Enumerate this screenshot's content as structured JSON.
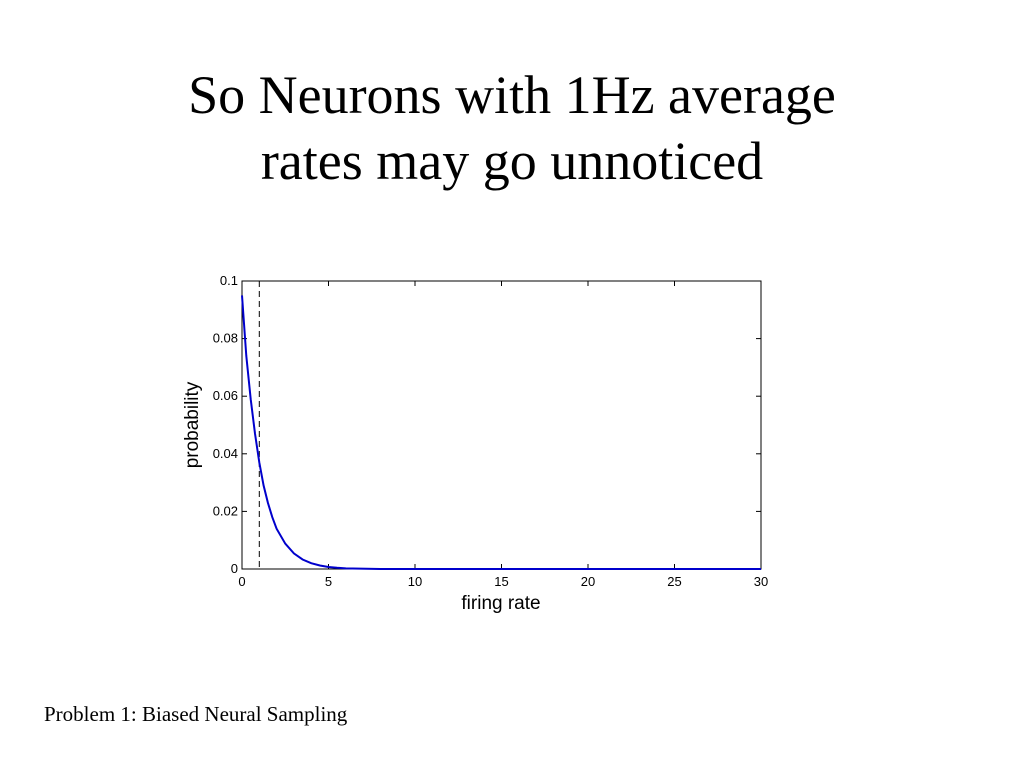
{
  "slide": {
    "title_line1": "So Neurons with 1Hz average",
    "title_line2": "rates may go unnoticed",
    "footer": "Problem 1: Biased Neural Sampling"
  },
  "chart_data": {
    "type": "line",
    "xlabel": "firing rate",
    "ylabel": "probability",
    "xlim": [
      0,
      30
    ],
    "ylim": [
      0,
      0.1
    ],
    "xticks": [
      "0",
      "5",
      "10",
      "15",
      "20",
      "25",
      "30"
    ],
    "yticks": [
      "0",
      "0.02",
      "0.04",
      "0.06",
      "0.08",
      "0.1"
    ],
    "series": [
      {
        "color": "#0000cc",
        "x": [
          0,
          0.25,
          0.5,
          0.75,
          1,
          1.25,
          1.5,
          1.75,
          2,
          2.5,
          3,
          3.5,
          4,
          4.5,
          5,
          5.5,
          6,
          8,
          10,
          15,
          20,
          25,
          30
        ],
        "y": [
          0.095,
          0.074,
          0.059,
          0.047,
          0.037,
          0.029,
          0.023,
          0.018,
          0.014,
          0.0088,
          0.0054,
          0.0033,
          0.002,
          0.0012,
          0.0007,
          0.0004,
          0.0002,
          0,
          0,
          0,
          0,
          0,
          0
        ]
      }
    ],
    "reference_line": {
      "x": 1,
      "style": "dashed",
      "color": "#000000"
    },
    "grid": false
  }
}
